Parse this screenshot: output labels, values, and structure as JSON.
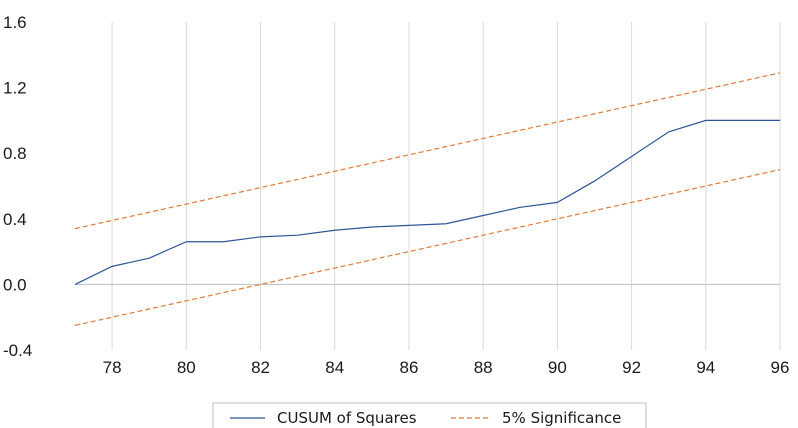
{
  "chart_data": {
    "type": "line",
    "title": "",
    "xlabel": "",
    "ylabel": "",
    "xlim": [
      77,
      96
    ],
    "ylim": [
      -0.4,
      1.6
    ],
    "x_ticks": [
      "78",
      "80",
      "82",
      "84",
      "86",
      "88",
      "90",
      "92",
      "94",
      "96"
    ],
    "y_ticks": [
      "1.6",
      "1.2",
      "0.8",
      "0.4",
      "0.0",
      "-0.4"
    ],
    "grid": "vertical",
    "legend_position": "bottom",
    "x": [
      77,
      78,
      79,
      80,
      81,
      82,
      83,
      84,
      85,
      86,
      87,
      88,
      89,
      90,
      91,
      92,
      93,
      94,
      95,
      96
    ],
    "series": [
      {
        "name": "CUSUM of Squares",
        "style": "solid",
        "color": "#2e5597",
        "values": [
          0.0,
          0.11,
          0.16,
          0.26,
          0.26,
          0.29,
          0.3,
          0.33,
          0.35,
          0.36,
          0.37,
          0.42,
          0.47,
          0.5,
          0.63,
          0.78,
          0.93,
          1.0,
          1.0,
          1.0
        ]
      },
      {
        "name": "5% Significance",
        "style": "dashed",
        "color": "#e07b39",
        "values": [
          0.34,
          0.39,
          0.44,
          0.49,
          0.54,
          0.59,
          0.64,
          0.69,
          0.74,
          0.79,
          0.84,
          0.89,
          0.94,
          0.99,
          1.04,
          1.09,
          1.14,
          1.19,
          1.24,
          1.29
        ]
      },
      {
        "name": "",
        "style": "dashed",
        "color": "#e07b39",
        "values": [
          -0.25,
          -0.2,
          -0.15,
          -0.1,
          -0.05,
          0.0,
          0.05,
          0.1,
          0.15,
          0.2,
          0.25,
          0.3,
          0.35,
          0.4,
          0.45,
          0.5,
          0.55,
          0.6,
          0.65,
          0.7
        ]
      }
    ],
    "colors": {
      "grid": "#d9d9d9",
      "zero_line": "#bfbfbf",
      "legend_border": "#bfbfbf"
    }
  }
}
